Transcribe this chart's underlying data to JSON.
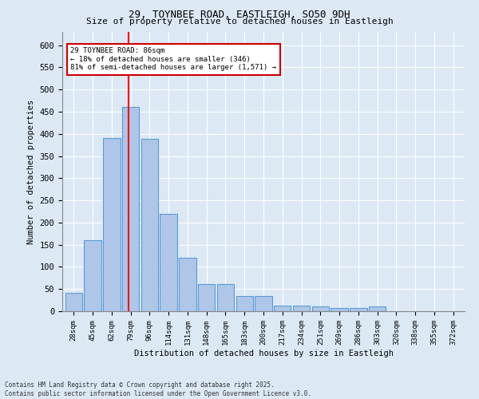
{
  "title1": "29, TOYNBEE ROAD, EASTLEIGH, SO50 9DH",
  "title2": "Size of property relative to detached houses in Eastleigh",
  "xlabel": "Distribution of detached houses by size in Eastleigh",
  "ylabel": "Number of detached properties",
  "categories": [
    "28sqm",
    "45sqm",
    "62sqm",
    "79sqm",
    "96sqm",
    "114sqm",
    "131sqm",
    "148sqm",
    "165sqm",
    "183sqm",
    "200sqm",
    "217sqm",
    "234sqm",
    "251sqm",
    "269sqm",
    "286sqm",
    "303sqm",
    "320sqm",
    "338sqm",
    "355sqm",
    "372sqm"
  ],
  "values": [
    42,
    160,
    390,
    460,
    388,
    220,
    120,
    62,
    62,
    35,
    35,
    13,
    13,
    10,
    7,
    7,
    10,
    0,
    0,
    0,
    0
  ],
  "bar_color": "#aec6e8",
  "bar_edge_color": "#5b9bd5",
  "background_color": "#dce9f5",
  "grid_color": "#ffffff",
  "annotation_text": "29 TOYNBEE ROAD: 86sqm\n← 18% of detached houses are smaller (346)\n81% of semi-detached houses are larger (1,571) →",
  "annotation_box_color": "#ffffff",
  "annotation_box_edge": "#cc0000",
  "footer": "Contains HM Land Registry data © Crown copyright and database right 2025.\nContains public sector information licensed under the Open Government Licence v3.0.",
  "ylim": [
    0,
    630
  ],
  "yticks": [
    0,
    50,
    100,
    150,
    200,
    250,
    300,
    350,
    400,
    450,
    500,
    550,
    600
  ]
}
